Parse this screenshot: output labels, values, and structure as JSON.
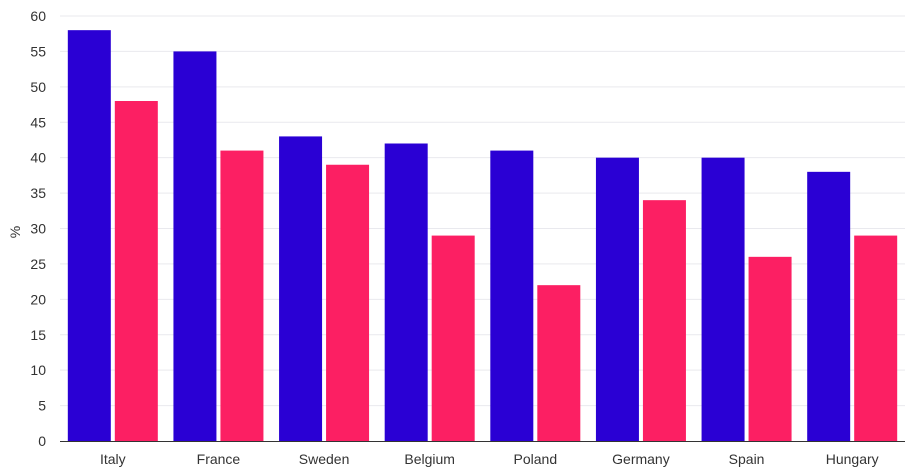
{
  "chart_data": {
    "type": "bar",
    "title": "",
    "xlabel": "",
    "ylabel": "%",
    "ylim": [
      0,
      60
    ],
    "y_ticks": [
      "0",
      "5",
      "10",
      "15",
      "20",
      "25",
      "30",
      "35",
      "40",
      "45",
      "50",
      "55",
      "60"
    ],
    "grid": true,
    "legend": "none",
    "categories": [
      "Italy",
      "France",
      "Sweden",
      "Belgium",
      "Poland",
      "Germany",
      "Spain",
      "Hungary"
    ],
    "series": [
      {
        "color": "#2a00d4",
        "values": [
          58,
          55,
          43,
          42,
          41,
          40,
          40,
          38
        ]
      },
      {
        "color": "#fc1f63",
        "values": [
          48,
          41,
          39,
          29,
          22,
          34,
          26,
          29
        ]
      }
    ]
  }
}
